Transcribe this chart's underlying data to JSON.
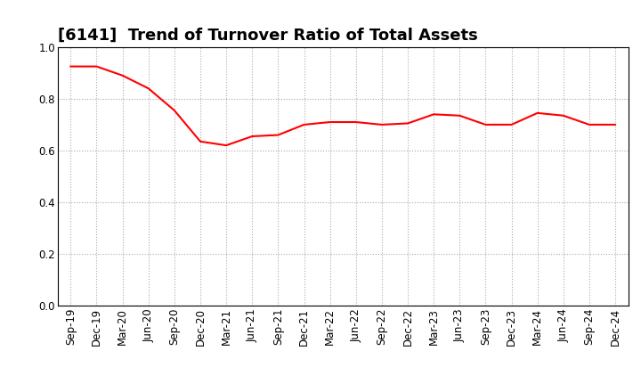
{
  "title": "[6141]  Trend of Turnover Ratio of Total Assets",
  "labels": [
    "Sep-19",
    "Dec-19",
    "Mar-20",
    "Jun-20",
    "Sep-20",
    "Dec-20",
    "Mar-21",
    "Jun-21",
    "Sep-21",
    "Dec-21",
    "Mar-22",
    "Jun-22",
    "Sep-22",
    "Dec-22",
    "Mar-23",
    "Jun-23",
    "Sep-23",
    "Dec-23",
    "Mar-24",
    "Jun-24",
    "Sep-24",
    "Dec-24"
  ],
  "values": [
    0.925,
    0.925,
    0.89,
    0.84,
    0.755,
    0.635,
    0.62,
    0.655,
    0.66,
    0.7,
    0.71,
    0.71,
    0.7,
    0.705,
    0.74,
    0.735,
    0.7,
    0.7,
    0.745,
    0.735,
    0.7,
    0.7
  ],
  "line_color": "#FF0000",
  "line_width": 1.5,
  "ylim": [
    0.0,
    1.0
  ],
  "yticks": [
    0.0,
    0.2,
    0.4,
    0.6,
    0.8,
    1.0
  ],
  "bg_color": "#FFFFFF",
  "plot_bg_color": "#FFFFFF",
  "grid_color": "#AAAAAA",
  "spine_color": "#000000",
  "title_fontsize": 13,
  "tick_fontsize": 8.5
}
